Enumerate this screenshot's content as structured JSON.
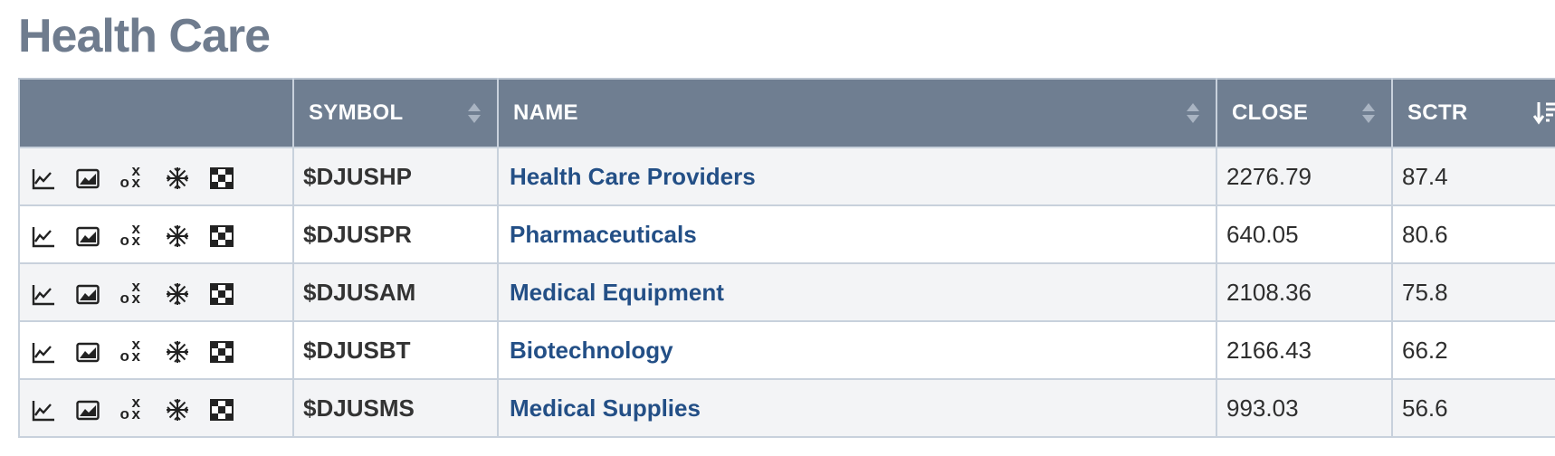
{
  "page": {
    "title": "Health Care"
  },
  "table": {
    "columns": {
      "tools": "",
      "symbol": "SYMBOL",
      "name": "NAME",
      "close": "CLOSE",
      "sctr": "SCTR"
    },
    "sort": {
      "column": "sctr",
      "direction": "descending"
    },
    "row_tools": [
      "line-chart-icon",
      "area-chart-icon",
      "point-figure-icon",
      "seasonality-icon",
      "checkerboard-icon"
    ],
    "rows": [
      {
        "symbol": "$DJUSHP",
        "name": "Health Care Providers",
        "close": "2276.79",
        "sctr": "87.4"
      },
      {
        "symbol": "$DJUSPR",
        "name": "Pharmaceuticals",
        "close": "640.05",
        "sctr": "80.6"
      },
      {
        "symbol": "$DJUSAM",
        "name": "Medical Equipment",
        "close": "2108.36",
        "sctr": "75.8"
      },
      {
        "symbol": "$DJUSBT",
        "name": "Biotechnology",
        "close": "2166.43",
        "sctr": "66.2"
      },
      {
        "symbol": "$DJUSMS",
        "name": "Medical Supplies",
        "close": "993.03",
        "sctr": "56.6"
      }
    ]
  },
  "colors": {
    "title": "#6f7c8e",
    "header_bg": "#6f7e91",
    "link": "#234f86",
    "row_alt": "#f3f4f6",
    "border": "#c8d1dc"
  }
}
